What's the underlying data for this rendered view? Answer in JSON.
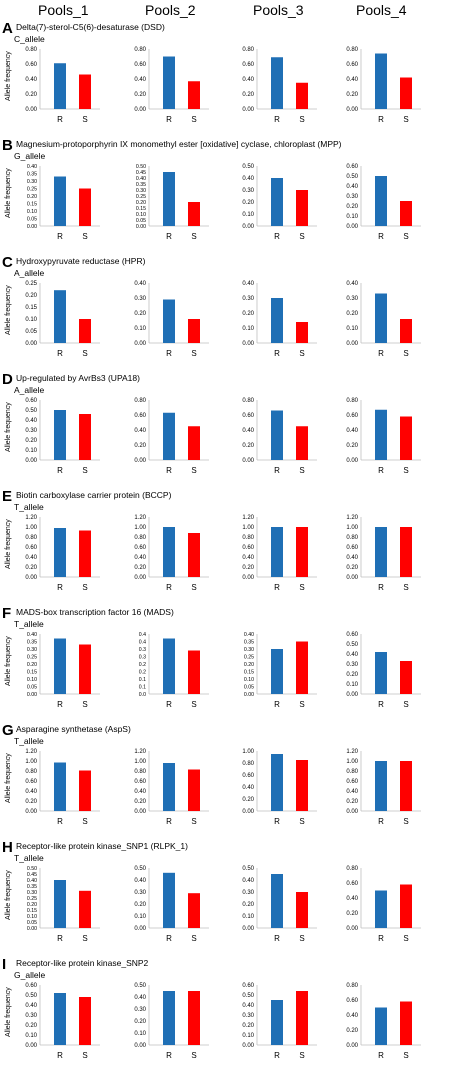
{
  "pools": [
    "Pools_1",
    "Pools_2",
    "Pools_3",
    "Pools_4"
  ],
  "colors": {
    "R": "#1f6fb5",
    "S": "#ff0000",
    "axis": "#bfbfbf"
  },
  "chart_data": [
    {
      "letter": "A",
      "title": "Delta(7)-sterol-C5(6)-desaturase (DSD)",
      "allele": "C_allele",
      "ylabel": "Allele frequency",
      "type": "bar",
      "categories": [
        "R",
        "S"
      ],
      "charts": [
        {
          "ticks": [
            "0.00",
            "0.20",
            "0.40",
            "0.60",
            "0.80"
          ],
          "ylim": [
            0,
            0.8
          ],
          "values": [
            0.61,
            0.46
          ]
        },
        {
          "ticks": [
            "0.00",
            "0.20",
            "0.40",
            "0.60",
            "0.80"
          ],
          "ylim": [
            0,
            0.8
          ],
          "values": [
            0.7,
            0.37
          ]
        },
        {
          "ticks": [
            "0.00",
            "0.20",
            "0.40",
            "0.60",
            "0.80"
          ],
          "ylim": [
            0,
            0.8
          ],
          "values": [
            0.69,
            0.35
          ]
        },
        {
          "ticks": [
            "0.00",
            "0.20",
            "0.40",
            "0.60",
            "0.80"
          ],
          "ylim": [
            0,
            0.8
          ],
          "values": [
            0.74,
            0.42
          ]
        }
      ]
    },
    {
      "letter": "B",
      "title": "Magnesium-protoporphyrin IX monomethyl ester [oxidative] cyclase, chloroplast (MPP)",
      "allele": "G_allele",
      "ylabel": "Allele frequency",
      "type": "bar",
      "categories": [
        "R",
        "S"
      ],
      "charts": [
        {
          "ticks": [
            "0.00",
            "0.05",
            "0.10",
            "0.15",
            "0.20",
            "0.25",
            "0.30",
            "0.35",
            "0.40"
          ],
          "ylim": [
            0,
            0.4
          ],
          "values": [
            0.33,
            0.25
          ]
        },
        {
          "ticks": [
            "0.00",
            "0.05",
            "0.10",
            "0.15",
            "0.20",
            "0.25",
            "0.30",
            "0.35",
            "0.40",
            "0.45",
            "0.50"
          ],
          "ylim": [
            0,
            0.5
          ],
          "values": [
            0.45,
            0.2
          ]
        },
        {
          "ticks": [
            "0.00",
            "0.10",
            "0.20",
            "0.30",
            "0.40",
            "0.50"
          ],
          "ylim": [
            0,
            0.5
          ],
          "values": [
            0.4,
            0.3
          ]
        },
        {
          "ticks": [
            "0.00",
            "0.10",
            "0.20",
            "0.30",
            "0.40",
            "0.50",
            "0.60"
          ],
          "ylim": [
            0,
            0.6
          ],
          "values": [
            0.5,
            0.25
          ]
        }
      ]
    },
    {
      "letter": "C",
      "title": "Hydroxypyruvate reductase (HPR)",
      "allele": "A_allele",
      "ylabel": "Allele frequency",
      "type": "bar",
      "categories": [
        "R",
        "S"
      ],
      "charts": [
        {
          "ticks": [
            "0.00",
            "0.05",
            "0.10",
            "0.15",
            "0.20",
            "0.25"
          ],
          "ylim": [
            0,
            0.25
          ],
          "values": [
            0.22,
            0.1
          ]
        },
        {
          "ticks": [
            "0.00",
            "0.10",
            "0.20",
            "0.30",
            "0.40"
          ],
          "ylim": [
            0,
            0.4
          ],
          "values": [
            0.29,
            0.16
          ]
        },
        {
          "ticks": [
            "0.00",
            "0.10",
            "0.20",
            "0.30",
            "0.40"
          ],
          "ylim": [
            0,
            0.4
          ],
          "values": [
            0.3,
            0.14
          ]
        },
        {
          "ticks": [
            "0.00",
            "0.10",
            "0.20",
            "0.30",
            "0.40"
          ],
          "ylim": [
            0,
            0.4
          ],
          "values": [
            0.33,
            0.16
          ]
        }
      ]
    },
    {
      "letter": "D",
      "title": "Up-regulated by AvrBs3 (UPA18)",
      "allele": "A_allele",
      "ylabel": "Allele frequency",
      "type": "bar",
      "categories": [
        "R",
        "S"
      ],
      "charts": [
        {
          "ticks": [
            "0.00",
            "0.10",
            "0.20",
            "0.30",
            "0.40",
            "0.50",
            "0.60"
          ],
          "ylim": [
            0,
            0.6
          ],
          "values": [
            0.5,
            0.46
          ]
        },
        {
          "ticks": [
            "0.00",
            "0.20",
            "0.40",
            "0.60",
            "0.80"
          ],
          "ylim": [
            0,
            0.8
          ],
          "values": [
            0.63,
            0.45
          ]
        },
        {
          "ticks": [
            "0.00",
            "0.20",
            "0.40",
            "0.60",
            "0.80"
          ],
          "ylim": [
            0,
            0.8
          ],
          "values": [
            0.66,
            0.45
          ]
        },
        {
          "ticks": [
            "0.00",
            "0.20",
            "0.40",
            "0.60",
            "0.80"
          ],
          "ylim": [
            0,
            0.8
          ],
          "values": [
            0.67,
            0.58
          ]
        }
      ]
    },
    {
      "letter": "E",
      "title": "Biotin carboxylase carrier protein (BCCP)",
      "allele": "T_allele",
      "ylabel": "Allele frequency",
      "type": "bar",
      "categories": [
        "R",
        "S"
      ],
      "charts": [
        {
          "ticks": [
            "0.00",
            "0.20",
            "0.40",
            "0.60",
            "0.80",
            "1.00",
            "1.20"
          ],
          "ylim": [
            0,
            1.2
          ],
          "values": [
            0.98,
            0.93
          ]
        },
        {
          "ticks": [
            "0.00",
            "0.20",
            "0.40",
            "0.60",
            "0.80",
            "1.00",
            "1.20"
          ],
          "ylim": [
            0,
            1.2
          ],
          "values": [
            1.0,
            0.88
          ]
        },
        {
          "ticks": [
            "0.00",
            "0.20",
            "0.40",
            "0.60",
            "0.80",
            "1.00",
            "1.20"
          ],
          "ylim": [
            0,
            1.2
          ],
          "values": [
            1.0,
            1.0
          ]
        },
        {
          "ticks": [
            "0.00",
            "0.20",
            "0.40",
            "0.60",
            "0.80",
            "1.00",
            "1.20"
          ],
          "ylim": [
            0,
            1.2
          ],
          "values": [
            1.0,
            1.0
          ]
        }
      ]
    },
    {
      "letter": "F",
      "title": "MADS-box transcription factor 16 (MADS)",
      "allele": "T_allele",
      "ylabel": "Allele frequency",
      "type": "bar",
      "categories": [
        "R",
        "S"
      ],
      "charts": [
        {
          "ticks": [
            "0.00",
            "0.05",
            "0.10",
            "0.15",
            "0.20",
            "0.25",
            "0.30",
            "0.35",
            "0.40"
          ],
          "ylim": [
            0,
            0.4
          ],
          "values": [
            0.37,
            0.33
          ]
        },
        {
          "ticks": [
            "0.0",
            "0.1",
            "0.1",
            "0.2",
            "0.2",
            "0.3",
            "0.3",
            "0.4",
            "0.4"
          ],
          "ylim": [
            0,
            0.4
          ],
          "values": [
            0.37,
            0.29
          ]
        },
        {
          "ticks": [
            "0.00",
            "0.05",
            "0.10",
            "0.15",
            "0.20",
            "0.25",
            "0.30",
            "0.35",
            "0.40"
          ],
          "ylim": [
            0,
            0.4
          ],
          "values": [
            0.3,
            0.35
          ]
        },
        {
          "ticks": [
            "0.00",
            "0.10",
            "0.20",
            "0.30",
            "0.40",
            "0.50",
            "0.60"
          ],
          "ylim": [
            0,
            0.6
          ],
          "values": [
            0.42,
            0.33
          ]
        }
      ]
    },
    {
      "letter": "G",
      "title": "Asparagine synthetase (AspS)",
      "allele": "T_allele",
      "ylabel": "Allele frequency",
      "type": "bar",
      "categories": [
        "R",
        "S"
      ],
      "charts": [
        {
          "ticks": [
            "0.00",
            "0.20",
            "0.40",
            "0.60",
            "0.80",
            "1.00",
            "1.20"
          ],
          "ylim": [
            0,
            1.2
          ],
          "values": [
            0.97,
            0.81
          ]
        },
        {
          "ticks": [
            "0.00",
            "0.20",
            "0.40",
            "0.60",
            "0.80",
            "1.00",
            "1.20"
          ],
          "ylim": [
            0,
            1.2
          ],
          "values": [
            0.96,
            0.83
          ]
        },
        {
          "ticks": [
            "0.00",
            "0.20",
            "0.40",
            "0.60",
            "0.80",
            "1.00"
          ],
          "ylim": [
            0,
            1.0
          ],
          "values": [
            0.95,
            0.85
          ]
        },
        {
          "ticks": [
            "0.00",
            "0.20",
            "0.40",
            "0.60",
            "0.80",
            "1.00",
            "1.20"
          ],
          "ylim": [
            0,
            1.2
          ],
          "values": [
            1.0,
            1.0
          ]
        }
      ]
    },
    {
      "letter": "H",
      "title": "Receptor-like protein kinase_SNP1 (RLPK_1)",
      "allele": "T_allele",
      "ylabel": "Allele frequency",
      "type": "bar",
      "categories": [
        "R",
        "S"
      ],
      "charts": [
        {
          "ticks": [
            "0.00",
            "0.05",
            "0.10",
            "0.15",
            "0.20",
            "0.25",
            "0.30",
            "0.35",
            "0.40",
            "0.45",
            "0.50"
          ],
          "ylim": [
            0,
            0.5
          ],
          "values": [
            0.4,
            0.31
          ]
        },
        {
          "ticks": [
            "0.00",
            "0.10",
            "0.20",
            "0.30",
            "0.40",
            "0.50"
          ],
          "ylim": [
            0,
            0.5
          ],
          "values": [
            0.46,
            0.29
          ]
        },
        {
          "ticks": [
            "0.00",
            "0.10",
            "0.20",
            "0.30",
            "0.40",
            "0.50"
          ],
          "ylim": [
            0,
            0.5
          ],
          "values": [
            0.45,
            0.3
          ]
        },
        {
          "ticks": [
            "0.00",
            "0.20",
            "0.40",
            "0.60",
            "0.80"
          ],
          "ylim": [
            0,
            0.8
          ],
          "values": [
            0.5,
            0.58
          ]
        }
      ]
    },
    {
      "letter": "I",
      "title": "Receptor-like protein kinase_SNP2",
      "allele": "G_allele",
      "ylabel": "Allele frequency",
      "type": "bar",
      "categories": [
        "R",
        "S"
      ],
      "charts": [
        {
          "ticks": [
            "0.00",
            "0.10",
            "0.20",
            "0.30",
            "0.40",
            "0.50",
            "0.60"
          ],
          "ylim": [
            0,
            0.6
          ],
          "values": [
            0.52,
            0.48
          ]
        },
        {
          "ticks": [
            "0.00",
            "0.10",
            "0.20",
            "0.30",
            "0.40",
            "0.50"
          ],
          "ylim": [
            0,
            0.5
          ],
          "values": [
            0.45,
            0.45
          ]
        },
        {
          "ticks": [
            "0.00",
            "0.10",
            "0.20",
            "0.30",
            "0.40",
            "0.50",
            "0.60"
          ],
          "ylim": [
            0,
            0.6
          ],
          "values": [
            0.45,
            0.54
          ]
        },
        {
          "ticks": [
            "0.00",
            "0.20",
            "0.40",
            "0.60",
            "0.80"
          ],
          "ylim": [
            0,
            0.8
          ],
          "values": [
            0.5,
            0.58
          ]
        }
      ]
    }
  ]
}
